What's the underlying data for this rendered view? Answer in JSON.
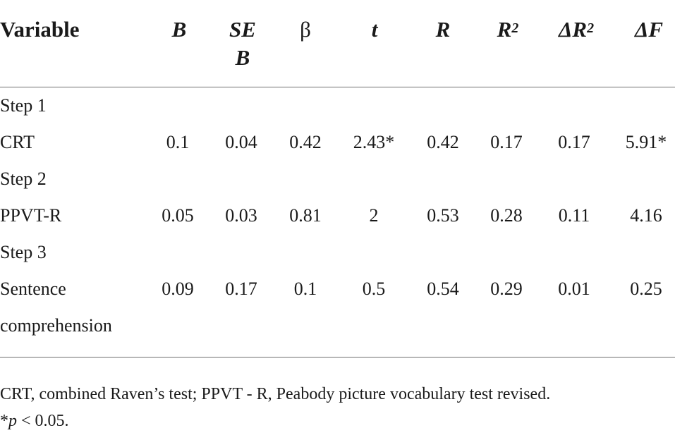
{
  "table": {
    "headers": {
      "variable": "Variable",
      "b": "B",
      "se_b_line1": "SE",
      "se_b_line2": "B",
      "beta": "β",
      "t": "t",
      "r": "R",
      "r2_base": "R",
      "r2_sup": "2",
      "dr2_base": "ΔR",
      "dr2_sup": "2",
      "df": "ΔF"
    },
    "rows": [
      {
        "label": "Step 1",
        "cells": [
          "",
          "",
          "",
          "",
          "",
          "",
          "",
          ""
        ]
      },
      {
        "label": "CRT",
        "cells": [
          "0.1",
          "0.04",
          "0.42",
          "2.43*",
          "0.42",
          "0.17",
          "0.17",
          "5.91*"
        ]
      },
      {
        "label": "Step 2",
        "cells": [
          "",
          "",
          "",
          "",
          "",
          "",
          "",
          ""
        ]
      },
      {
        "label": "PPVT-R",
        "cells": [
          "0.05",
          "0.03",
          "0.81",
          "2",
          "0.53",
          "0.28",
          "0.11",
          "4.16"
        ]
      },
      {
        "label": "Step 3",
        "cells": [
          "",
          "",
          "",
          "",
          "",
          "",
          "",
          ""
        ]
      },
      {
        "label": "Sentence",
        "label2": "comprehension",
        "cells": [
          "0.09",
          "0.17",
          "0.1",
          "0.5",
          "0.54",
          "0.29",
          "0.01",
          "0.25"
        ]
      }
    ]
  },
  "notes": {
    "line1": "CRT, combined Raven’s test; PPVT - R, Peabody picture vocabulary test revised.",
    "line2_prefix": "*",
    "line2_p": "p",
    "line2_suffix": " < 0.05."
  }
}
